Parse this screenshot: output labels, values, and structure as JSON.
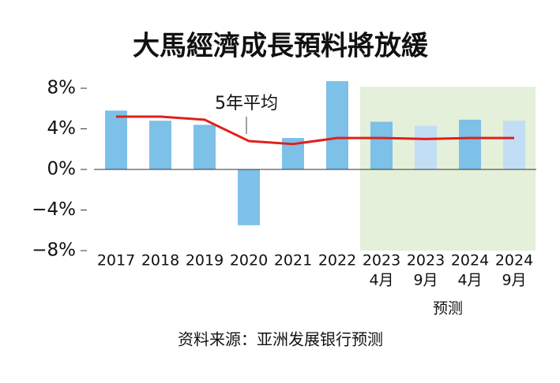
{
  "chart_data": {
    "type": "bar",
    "title": "大馬經濟成長預料將放緩",
    "categories": [
      [
        "2017"
      ],
      [
        "2018"
      ],
      [
        "2019"
      ],
      [
        "2020"
      ],
      [
        "2021"
      ],
      [
        "2022"
      ],
      [
        "2023",
        "4月"
      ],
      [
        "2023",
        "9月"
      ],
      [
        "2024",
        "4月"
      ],
      [
        "2024",
        "9月"
      ]
    ],
    "series": [
      {
        "type": "bar",
        "values": [
          5.8,
          4.8,
          4.4,
          -5.5,
          3.1,
          8.7,
          4.7,
          4.3,
          4.9,
          4.8
        ],
        "colors": [
          "#7dc0e8",
          "#7dc0e8",
          "#7dc0e8",
          "#7dc0e8",
          "#7dc0e8",
          "#7dc0e8",
          "#7dc0e8",
          "#c2def4",
          "#7dc0e8",
          "#c2def4"
        ]
      },
      {
        "type": "line",
        "name": "5年平均",
        "color": "#e0201b",
        "values": [
          5.2,
          5.2,
          4.9,
          2.8,
          2.5,
          3.1,
          3.1,
          3.0,
          3.1,
          3.1
        ]
      }
    ],
    "ylim": [
      -8,
      8
    ],
    "yticks": [
      {
        "value": -8,
        "label": "−8%"
      },
      {
        "value": -4,
        "label": "−4%"
      },
      {
        "value": 0,
        "label": "0%"
      },
      {
        "value": 4,
        "label": "4%"
      },
      {
        "value": 8,
        "label": "8%"
      }
    ],
    "forecast_label": "预测",
    "source": "资料来源：亚洲发展银行预测"
  }
}
